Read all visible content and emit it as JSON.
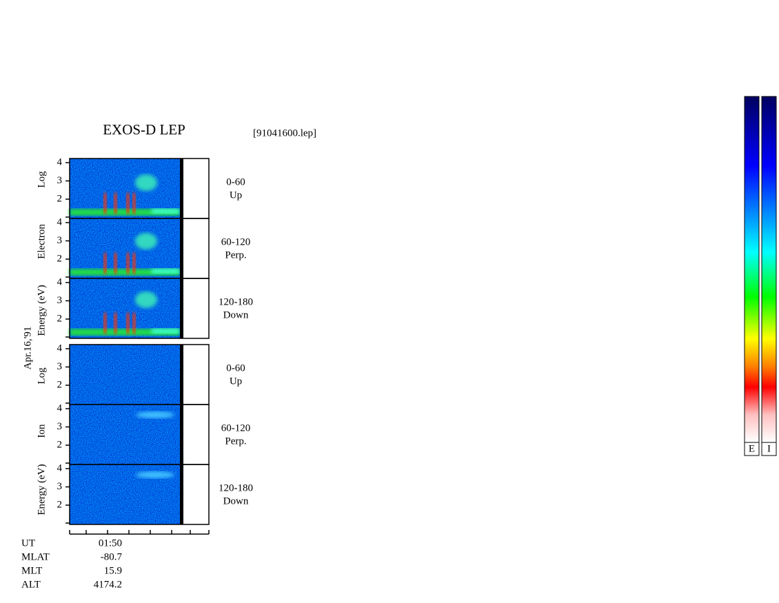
{
  "header": {
    "title": "EXOS-D LEP",
    "file": "[91041600.lep]"
  },
  "date": "Apr.16,'91",
  "electron": {
    "axis_label": [
      "Log",
      "Electron",
      "Energy (eV)"
    ],
    "panels": [
      {
        "range": "0-60",
        "direction": "Up"
      },
      {
        "range": "60-120",
        "direction": "Perp."
      },
      {
        "range": "120-180",
        "direction": "Down"
      }
    ]
  },
  "ion": {
    "axis_label": [
      "Log",
      "Ion",
      "Energy (eV)"
    ],
    "panels": [
      {
        "range": "0-60",
        "direction": "Up"
      },
      {
        "range": "60-120",
        "direction": "Perp."
      },
      {
        "range": "120-180",
        "direction": "Down"
      }
    ]
  },
  "yticks": [
    4,
    3,
    2
  ],
  "footer": [
    [
      "UT",
      "01:50"
    ],
    [
      "MLAT",
      "-80.7"
    ],
    [
      "MLT",
      "15.9"
    ],
    [
      "ALT",
      "4174.2"
    ]
  ],
  "colorbars": [
    "E",
    "I"
  ]
}
